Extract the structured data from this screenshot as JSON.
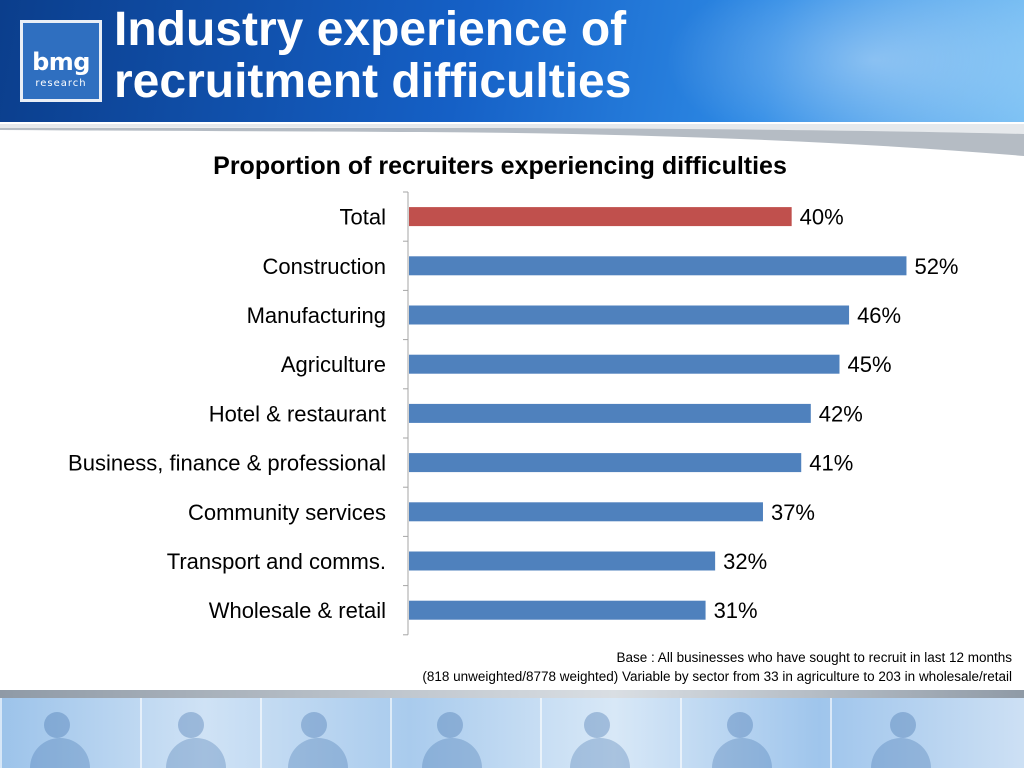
{
  "header": {
    "title_lines": [
      "Industry experience of",
      "recruitment difficulties"
    ],
    "logo": {
      "main": "bmg",
      "sub": "research"
    }
  },
  "colors": {
    "header_blue": "#1560c6",
    "highlight_bar": "#c0504d",
    "bar": "#4f81bd",
    "axis": "#a6a6a6"
  },
  "chart_data": {
    "type": "bar",
    "orientation": "horizontal",
    "title": "Proportion of recruiters experiencing difficulties",
    "xlabel": "",
    "ylabel": "",
    "xlim": [
      0,
      60
    ],
    "grid": false,
    "legend": "none",
    "value_suffix": "%",
    "categories": [
      "Total",
      "Construction",
      "Manufacturing",
      "Agriculture",
      "Hotel & restaurant",
      "Business, finance & professional",
      "Community services",
      "Transport and comms.",
      "Wholesale & retail"
    ],
    "values": [
      40,
      52,
      46,
      45,
      42,
      41,
      37,
      32,
      31
    ],
    "highlight": [
      "Total"
    ]
  },
  "footnote": {
    "line1": "Base : All businesses who have sought to recruit in last 12 months",
    "line2": "(818 unweighted/8778 weighted) Variable by sector from 33 in agriculture to 203 in wholesale/retail"
  }
}
